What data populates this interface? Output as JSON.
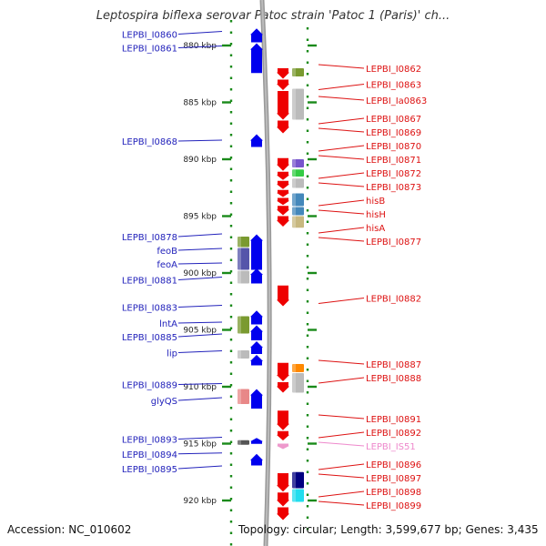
{
  "title": "Leptospira biflexa serovar Patoc strain 'Patoc 1 (Paris)' ch...",
  "footer": {
    "accession": "Accession: NC_010602",
    "topology": "Topology: circular; Length: 3,599,677 bp; Genes: 3,435"
  },
  "colors": {
    "forward_gene": "#0000ee",
    "reverse_gene": "#ee0000",
    "forward_label": "#2222bb",
    "reverse_label": "#dd1111",
    "misc_feature_label": "#ee88cc",
    "axis": "#888888",
    "ticks": "#1a8a1a"
  },
  "scale": {
    "ticks": [
      {
        "label": "880 kbp",
        "kbp": 880
      },
      {
        "label": "885 kbp",
        "kbp": 885
      },
      {
        "label": "890 kbp",
        "kbp": 890
      },
      {
        "label": "895 kbp",
        "kbp": 895
      },
      {
        "label": "900 kbp",
        "kbp": 900
      },
      {
        "label": "905 kbp",
        "kbp": 905
      },
      {
        "label": "910 kbp",
        "kbp": 910
      },
      {
        "label": "915 kbp",
        "kbp": 915
      },
      {
        "label": "920 kbp",
        "kbp": 920
      }
    ]
  },
  "left_labels": [
    {
      "text": "LEPBI_I0860",
      "kbp": 879.0
    },
    {
      "text": "LEPBI_I0861",
      "kbp": 880.2
    },
    {
      "text": "LEPBI_I0868",
      "kbp": 888.4
    },
    {
      "text": "LEPBI_I0878",
      "kbp": 896.8
    },
    {
      "text": "feoB",
      "kbp": 898.0
    },
    {
      "text": "feoA",
      "kbp": 899.2
    },
    {
      "text": "LEPBI_I0881",
      "kbp": 900.6
    },
    {
      "text": "LEPBI_I0883",
      "kbp": 903.0
    },
    {
      "text": "lntA",
      "kbp": 904.4
    },
    {
      "text": "LEPBI_I0885",
      "kbp": 905.6
    },
    {
      "text": "lip",
      "kbp": 907.0
    },
    {
      "text": "LEPBI_I0889",
      "kbp": 909.8
    },
    {
      "text": "glyQS",
      "kbp": 911.2
    },
    {
      "text": "LEPBI_I0893",
      "kbp": 914.6
    },
    {
      "text": "LEPBI_I0894",
      "kbp": 915.9
    },
    {
      "text": "LEPBI_I0895",
      "kbp": 917.2
    }
  ],
  "right_labels": [
    {
      "text": "LEPBI_I0862",
      "kbp": 882.0,
      "type": "gene"
    },
    {
      "text": "LEPBI_I0863",
      "kbp": 883.4,
      "type": "gene"
    },
    {
      "text": "LEPBI_Ia0863",
      "kbp": 884.8,
      "type": "gene"
    },
    {
      "text": "LEPBI_I0867",
      "kbp": 886.4,
      "type": "gene"
    },
    {
      "text": "LEPBI_I0869",
      "kbp": 887.6,
      "type": "gene"
    },
    {
      "text": "LEPBI_I0870",
      "kbp": 888.8,
      "type": "gene"
    },
    {
      "text": "LEPBI_I0871",
      "kbp": 890.0,
      "type": "gene"
    },
    {
      "text": "LEPBI_I0872",
      "kbp": 891.2,
      "type": "gene"
    },
    {
      "text": "LEPBI_I0873",
      "kbp": 892.4,
      "type": "gene"
    },
    {
      "text": "hisB",
      "kbp": 893.6,
      "type": "gene"
    },
    {
      "text": "hisH",
      "kbp": 894.8,
      "type": "gene"
    },
    {
      "text": "hisA",
      "kbp": 896.0,
      "type": "gene"
    },
    {
      "text": "LEPBI_I0877",
      "kbp": 897.2,
      "type": "gene"
    },
    {
      "text": "LEPBI_I0882",
      "kbp": 902.2,
      "type": "gene"
    },
    {
      "text": "LEPBI_I0887",
      "kbp": 908.0,
      "type": "gene"
    },
    {
      "text": "LEPBI_I0888",
      "kbp": 909.2,
      "type": "gene"
    },
    {
      "text": "LEPBI_I0891",
      "kbp": 912.8,
      "type": "gene"
    },
    {
      "text": "LEPBI_I0892",
      "kbp": 914.0,
      "type": "gene"
    },
    {
      "text": "LEPBI_IS51",
      "kbp": 915.2,
      "type": "misc"
    },
    {
      "text": "LEPBI_I0896",
      "kbp": 916.8,
      "type": "gene"
    },
    {
      "text": "LEPBI_I0897",
      "kbp": 918.0,
      "type": "gene"
    },
    {
      "text": "LEPBI_I0898",
      "kbp": 919.2,
      "type": "gene"
    },
    {
      "text": "LEPBI_I0899",
      "kbp": 920.4,
      "type": "gene"
    }
  ],
  "forward_genes": [
    {
      "start": 878.5,
      "end": 879.8
    },
    {
      "start": 879.8,
      "end": 882.5
    },
    {
      "start": 887.8,
      "end": 889.0
    },
    {
      "start": 896.6,
      "end": 899.8
    },
    {
      "start": 899.6,
      "end": 901.0
    },
    {
      "start": 903.3,
      "end": 904.6
    },
    {
      "start": 904.6,
      "end": 906.0
    },
    {
      "start": 906.0,
      "end": 907.2
    },
    {
      "start": 907.2,
      "end": 908.2
    },
    {
      "start": 910.2,
      "end": 912.0
    },
    {
      "start": 914.5,
      "end": 915.1
    },
    {
      "start": 915.9,
      "end": 917.0
    }
  ],
  "reverse_genes": [
    {
      "start": 882.0,
      "end": 883.0
    },
    {
      "start": 883.0,
      "end": 884.0
    },
    {
      "start": 884.0,
      "end": 886.6
    },
    {
      "start": 886.6,
      "end": 887.8
    },
    {
      "start": 889.9,
      "end": 891.1
    },
    {
      "start": 891.1,
      "end": 891.9
    },
    {
      "start": 891.9,
      "end": 892.7
    },
    {
      "start": 892.7,
      "end": 893.4
    },
    {
      "start": 893.4,
      "end": 894.1
    },
    {
      "start": 894.1,
      "end": 895.0
    },
    {
      "start": 895.0,
      "end": 896.0
    },
    {
      "start": 901.1,
      "end": 903.0
    },
    {
      "start": 907.9,
      "end": 909.6
    },
    {
      "start": 909.6,
      "end": 910.6
    },
    {
      "start": 912.1,
      "end": 913.9
    },
    {
      "start": 913.9,
      "end": 914.8
    },
    {
      "start": 917.6,
      "end": 919.3
    },
    {
      "start": 919.3,
      "end": 920.6
    },
    {
      "start": 920.6,
      "end": 921.8
    }
  ],
  "misc_features": [
    {
      "start": 915.0,
      "end": 915.4,
      "color": "#ee99cc"
    }
  ],
  "forward_annotations": [
    {
      "start": 896.8,
      "end": 897.8,
      "color": "#7a9a30"
    },
    {
      "start": 897.8,
      "end": 899.8,
      "color": "#5555aa"
    },
    {
      "start": 899.8,
      "end": 901.0,
      "color": "#bbbbbb"
    },
    {
      "start": 903.8,
      "end": 905.4,
      "color": "#7a9a30"
    },
    {
      "start": 906.8,
      "end": 907.6,
      "color": "#bbbbbb"
    },
    {
      "start": 910.2,
      "end": 911.6,
      "color": "#e88888"
    },
    {
      "start": 914.7,
      "end": 915.0,
      "color": "#555555"
    }
  ],
  "reverse_annotations": [
    {
      "start": 882.0,
      "end": 882.8,
      "color": "#7a9a30"
    },
    {
      "start": 883.8,
      "end": 886.6,
      "color": "#bbbbbb"
    },
    {
      "start": 890.0,
      "end": 890.8,
      "color": "#7755cc"
    },
    {
      "start": 890.9,
      "end": 891.6,
      "color": "#33cc44"
    },
    {
      "start": 891.7,
      "end": 892.6,
      "color": "#bbbbbb"
    },
    {
      "start": 893.0,
      "end": 894.2,
      "color": "#4488bb"
    },
    {
      "start": 894.2,
      "end": 895.0,
      "color": "#4488bb"
    },
    {
      "start": 895.0,
      "end": 896.1,
      "color": "#c8b880"
    },
    {
      "start": 908.0,
      "end": 908.8,
      "color": "#ff8800"
    },
    {
      "start": 908.8,
      "end": 910.6,
      "color": "#bbbbbb"
    },
    {
      "start": 917.5,
      "end": 919.0,
      "color": "#000080"
    },
    {
      "start": 919.0,
      "end": 920.2,
      "color": "#22ddee"
    }
  ]
}
